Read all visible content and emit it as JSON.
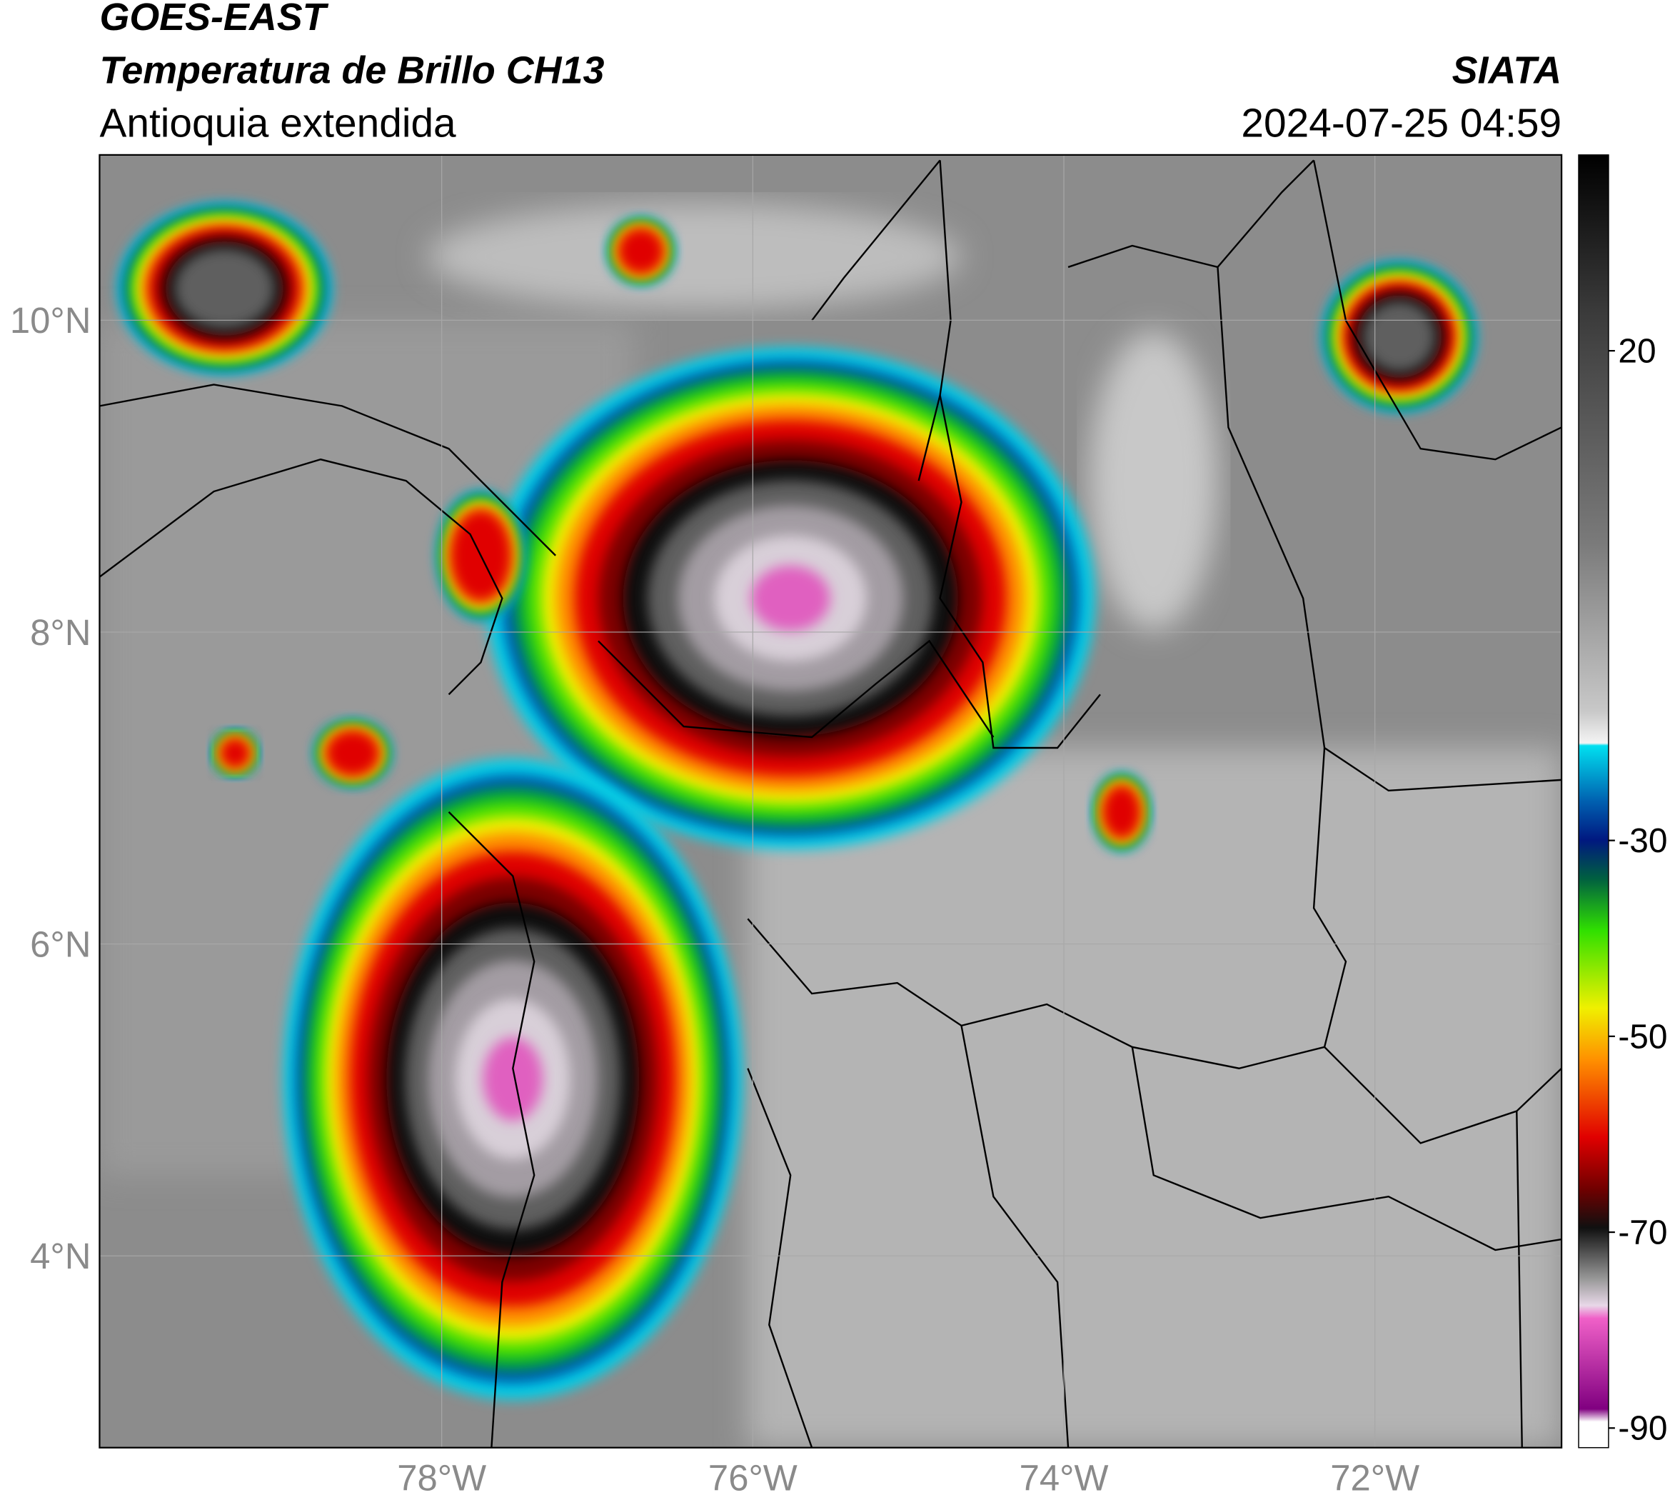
{
  "header": {
    "satellite": "GOES-EAST",
    "product": "Temperatura de Brillo CH13",
    "region": "Antioquia extendida",
    "agency": "SIATA",
    "timestamp": "2024-07-25 04:59"
  },
  "map": {
    "lonlim": [
      -80.2,
      -70.8
    ],
    "latlim": [
      2.77,
      11.06
    ],
    "lat_ticks": [
      {
        "value": 10,
        "label": "10°N"
      },
      {
        "value": 8,
        "label": "8°N"
      },
      {
        "value": 6,
        "label": "6°N"
      },
      {
        "value": 4,
        "label": "4°N"
      }
    ],
    "lon_ticks": [
      {
        "value": -78,
        "label": "78°W"
      },
      {
        "value": -76,
        "label": "76°W"
      },
      {
        "value": -74,
        "label": "74°W"
      },
      {
        "value": -72,
        "label": "72°W"
      }
    ],
    "grid": true
  },
  "colorbar": {
    "lim": [
      -92,
      40
    ],
    "ticks": [
      20,
      -30,
      -50,
      -70,
      -90
    ]
  }
}
